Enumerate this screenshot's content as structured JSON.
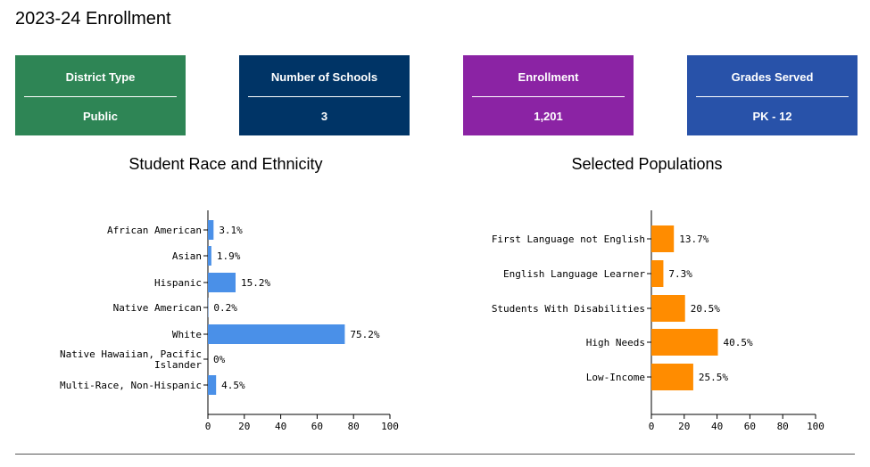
{
  "page": {
    "title": "2023-24 Enrollment"
  },
  "cards": [
    {
      "label": "District Type",
      "value": "Public",
      "color": "#2e8555"
    },
    {
      "label": "Number of Schools",
      "value": "3",
      "color": "#003466"
    },
    {
      "label": "Enrollment",
      "value": "1,201",
      "color": "#8b23a4"
    },
    {
      "label": "Grades Served",
      "value": "PK - 12",
      "color": "#2852a9"
    }
  ],
  "chart_data": [
    {
      "type": "bar",
      "orientation": "horizontal",
      "title": "Student Race and Ethnicity",
      "categories": [
        [
          "African American"
        ],
        [
          "Asian"
        ],
        [
          "Hispanic"
        ],
        [
          "Native American"
        ],
        [
          "White"
        ],
        [
          "Native Hawaiian, Pacific",
          "Islander"
        ],
        [
          "Multi-Race, Non-Hispanic"
        ]
      ],
      "values": [
        3.1,
        1.9,
        15.2,
        0.2,
        75.2,
        0,
        4.5
      ],
      "value_labels": [
        "3.1%",
        "1.9%",
        "15.2%",
        "0.2%",
        "75.2%",
        "0%",
        "4.5%"
      ],
      "xlim": [
        0,
        100
      ],
      "xticks": [
        0,
        20,
        40,
        60,
        80,
        100
      ],
      "color": "#4a90e8",
      "grid": false
    },
    {
      "type": "bar",
      "orientation": "horizontal",
      "title": "Selected Populations",
      "categories": [
        [
          "First Language not English"
        ],
        [
          "English Language Learner"
        ],
        [
          "Students With Disabilities"
        ],
        [
          "High Needs"
        ],
        [
          "Low-Income"
        ]
      ],
      "values": [
        13.7,
        7.3,
        20.5,
        40.5,
        25.5
      ],
      "value_labels": [
        "13.7%",
        "7.3%",
        "20.5%",
        "40.5%",
        "25.5%"
      ],
      "xlim": [
        0,
        100
      ],
      "xticks": [
        0,
        20,
        40,
        60,
        80,
        100
      ],
      "color": "#ff8c00",
      "grid": false
    }
  ]
}
